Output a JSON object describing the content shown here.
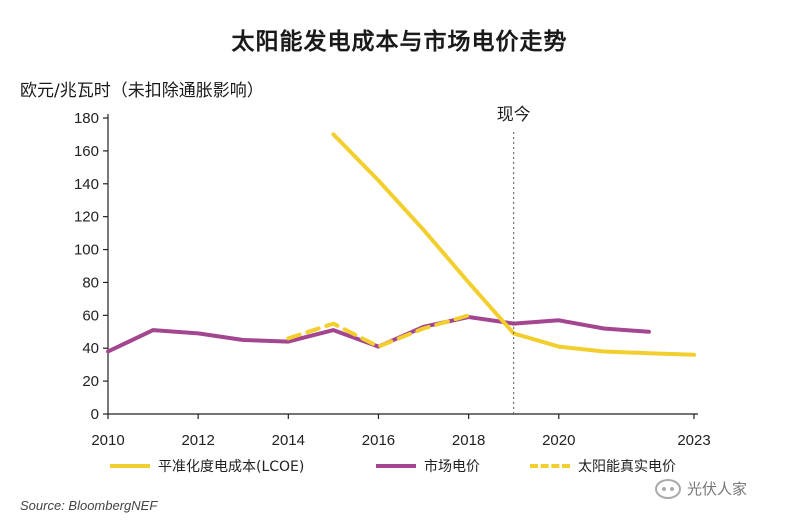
{
  "title": "太阳能发电成本与市场电价走势",
  "chart_data": {
    "type": "line",
    "ylabel": "欧元/兆瓦时（未扣除通胀影响）",
    "xlabel": "",
    "xlim": [
      2010,
      2023
    ],
    "ylim": [
      0,
      180
    ],
    "x_ticks": [
      2010,
      2012,
      2014,
      2016,
      2018,
      2020,
      2023
    ],
    "y_ticks": [
      0,
      20,
      40,
      60,
      80,
      100,
      120,
      140,
      160,
      180
    ],
    "grid": false,
    "legend_position": "bottom",
    "annotations": [
      {
        "label": "现今",
        "x": 2019
      }
    ],
    "series": [
      {
        "name": "平准化度电成本(LCOE)",
        "color": "#f2cf2e",
        "style": "solid",
        "points": [
          [
            2015,
            170
          ],
          [
            2016,
            142
          ],
          [
            2017,
            112
          ],
          [
            2018,
            80
          ],
          [
            2019,
            49
          ],
          [
            2020,
            41
          ],
          [
            2021,
            38
          ],
          [
            2022,
            37
          ],
          [
            2023,
            36
          ]
        ]
      },
      {
        "name": "市场电价",
        "color": "#a4468f",
        "style": "solid",
        "points": [
          [
            2010,
            38
          ],
          [
            2011,
            51
          ],
          [
            2012,
            49
          ],
          [
            2013,
            45
          ],
          [
            2014,
            44
          ],
          [
            2015,
            51
          ],
          [
            2016,
            41
          ],
          [
            2017,
            53
          ],
          [
            2018,
            59
          ],
          [
            2019,
            55
          ],
          [
            2020,
            57
          ],
          [
            2021,
            52
          ],
          [
            2022,
            50
          ]
        ]
      },
      {
        "name": "太阳能真实电价",
        "color": "#f2cf2e",
        "style": "dashed",
        "points": [
          [
            2014,
            46
          ],
          [
            2015,
            55
          ],
          [
            2016,
            41
          ],
          [
            2017,
            52
          ],
          [
            2018,
            60
          ]
        ]
      }
    ]
  },
  "source": "Source: BloombergNEF",
  "watermark": "光伏人家"
}
